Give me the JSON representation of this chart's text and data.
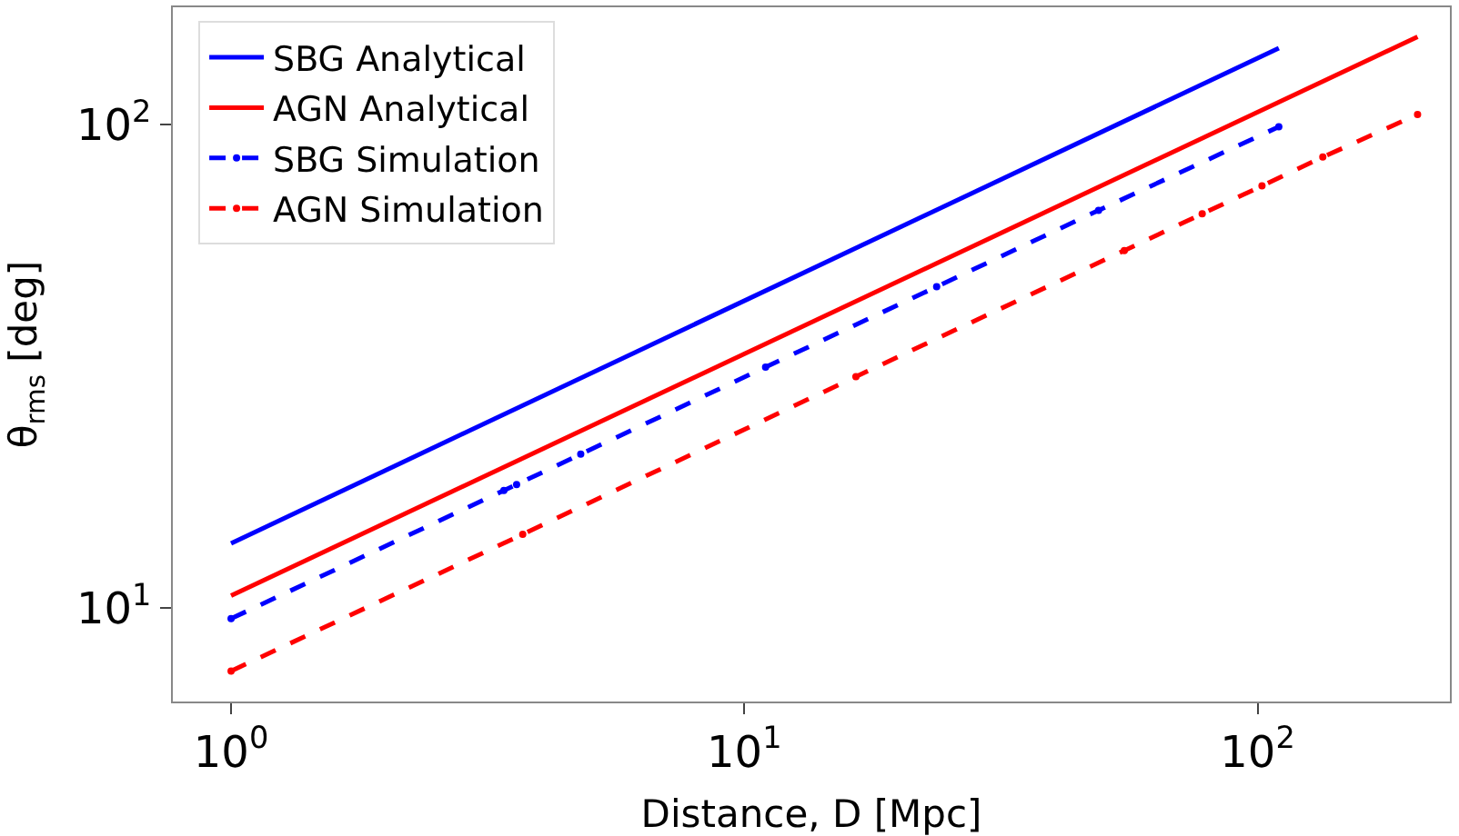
{
  "chart_data": {
    "type": "line",
    "xlabel": "Distance, D [Mpc]",
    "ylabel": "θ$_{rms}$ [deg]",
    "log": "xy",
    "legend": "top left",
    "xlim": [
      0.77,
      237
    ],
    "ylim": [
      6.4,
      175
    ],
    "xticks": [
      {
        "value": 1,
        "label": "10$^{0}$"
      },
      {
        "value": 10,
        "label": "10$^{1}$"
      },
      {
        "value": 100,
        "label": "10$^{2}$"
      }
    ],
    "yticks": [
      {
        "value": 10,
        "label": "10$^{1}$"
      },
      {
        "value": 100,
        "label": "10$^{2}$"
      }
    ],
    "series": [
      {
        "name": "SBG Analytical",
        "color": "#0000ff",
        "line_style": "solid",
        "marker": "none",
        "x": [
          1,
          110
        ],
        "values": [
          13.6,
          144
        ]
      },
      {
        "name": "AGN Analytical",
        "color": "#ff0000",
        "line_style": "solid",
        "marker": "none",
        "x": [
          1,
          205
        ],
        "values": [
          10.6,
          152
        ]
      },
      {
        "name": "SBG Simulation",
        "color": "#0000ff",
        "line_style": "dashed",
        "marker": "circle",
        "x": [
          1,
          3.4,
          3.6,
          4.8,
          11,
          23.7,
          49,
          110
        ],
        "values": [
          9.5,
          17.5,
          18.0,
          20.8,
          31.5,
          46.2,
          66.5,
          99
        ]
      },
      {
        "name": "AGN Simulation",
        "color": "#ff0000",
        "line_style": "dashed",
        "marker": "circle",
        "x": [
          1,
          3.7,
          16.5,
          55,
          78,
          102,
          134,
          205
        ],
        "values": [
          7.4,
          14.2,
          30.1,
          54.9,
          65.4,
          74.7,
          85.7,
          105
        ]
      }
    ]
  }
}
